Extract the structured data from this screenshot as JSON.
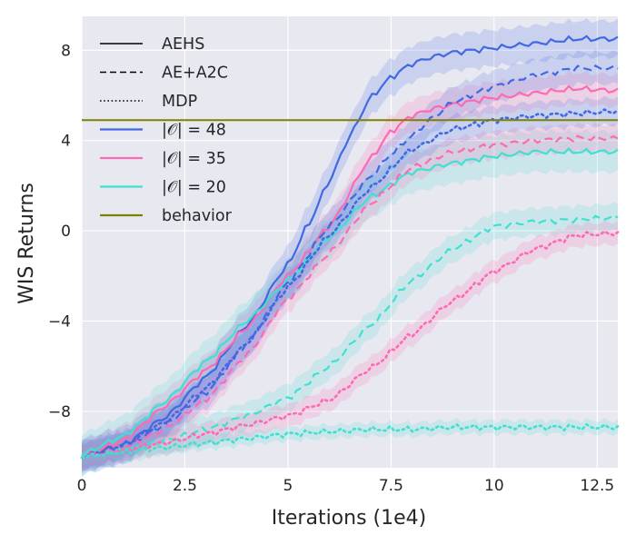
{
  "chart_data": {
    "type": "line",
    "title": "",
    "xlabel": "Iterations (1e4)",
    "ylabel": "WIS Returns",
    "xlim": [
      0,
      13
    ],
    "ylim": [
      -10.5,
      9.5
    ],
    "xticks": [
      0,
      2.5,
      5,
      7.5,
      10,
      12.5
    ],
    "xtick_labels": [
      "0",
      "2.5",
      "5",
      "7.5",
      "10",
      "12.5"
    ],
    "yticks": [
      -8,
      -4,
      0,
      4,
      8
    ],
    "ytick_labels": [
      "−8",
      "−4",
      "0",
      "4",
      "8"
    ],
    "grid": true,
    "background": "#e8e8f1",
    "legend_position": "top-left",
    "legend": [
      {
        "label": "AEHS",
        "kind": "linestyle",
        "dash": "solid",
        "color": "#000000"
      },
      {
        "label": "AE+A2C",
        "kind": "linestyle",
        "dash": "dashed",
        "color": "#000000"
      },
      {
        "label": "MDP",
        "kind": "linestyle",
        "dash": "dotted",
        "color": "#000000"
      },
      {
        "label": "|𝒪| = 48",
        "kind": "color",
        "color": "#4169e1"
      },
      {
        "label": "|𝒪| = 35",
        "kind": "color",
        "color": "#ff69b4"
      },
      {
        "label": "|𝒪| = 20",
        "kind": "color",
        "color": "#40e0d0"
      },
      {
        "label": "behavior",
        "kind": "color",
        "color": "#808000"
      }
    ],
    "behavior": {
      "name": "behavior",
      "value": 4.9,
      "color": "#808000"
    },
    "series": [
      {
        "name": "AEHS |O|=48",
        "color": "#4169e1",
        "dash": "solid",
        "band": 0.8,
        "x": [
          0,
          1,
          2,
          3,
          4,
          5,
          5.5,
          6,
          6.5,
          7,
          7.5,
          8,
          8.5,
          9,
          9.5,
          10,
          11,
          12,
          13
        ],
        "y": [
          -10,
          -9.5,
          -8.3,
          -6.5,
          -4.2,
          -1.5,
          0.3,
          2.2,
          4.2,
          5.9,
          6.8,
          7.4,
          7.7,
          7.9,
          8.0,
          8.1,
          8.3,
          8.5,
          8.5
        ]
      },
      {
        "name": "AEHS |O|=35",
        "color": "#ff69b4",
        "dash": "solid",
        "band": 0.7,
        "x": [
          0,
          1,
          2,
          3,
          4,
          5,
          6,
          7,
          7.5,
          8,
          8.5,
          9,
          10,
          11,
          12,
          13
        ],
        "y": [
          -10,
          -9.3,
          -7.8,
          -6.2,
          -4.3,
          -2.0,
          0.2,
          3.2,
          4.4,
          5.1,
          5.4,
          5.6,
          5.9,
          6.1,
          6.3,
          6.2
        ]
      },
      {
        "name": "AEHS |O|=20",
        "color": "#40e0d0",
        "dash": "solid",
        "band": 0.9,
        "x": [
          0,
          1,
          2,
          3,
          4,
          5,
          6,
          7,
          8,
          9,
          10,
          11,
          12,
          13
        ],
        "y": [
          -9.9,
          -9.1,
          -7.6,
          -5.8,
          -4.0,
          -2.2,
          -0.3,
          1.5,
          2.6,
          3.0,
          3.3,
          3.5,
          3.5,
          3.5
        ]
      },
      {
        "name": "AE+A2C |O|=48",
        "color": "#4169e1",
        "dash": "dashed",
        "band": 0.7,
        "x": [
          0,
          1,
          2,
          3,
          4,
          5,
          6,
          7,
          7.5,
          8,
          8.5,
          9,
          10,
          11,
          12,
          13
        ],
        "y": [
          -10,
          -9.6,
          -8.6,
          -7.2,
          -5.0,
          -2.3,
          0.2,
          2.4,
          3.4,
          4.2,
          5.0,
          5.7,
          6.4,
          6.9,
          7.2,
          7.2
        ]
      },
      {
        "name": "AE+A2C |O|=35",
        "color": "#ff69b4",
        "dash": "dashed",
        "band": 0.6,
        "x": [
          0,
          1,
          2,
          3,
          4,
          5,
          6,
          7,
          8,
          9,
          10,
          11,
          12,
          13
        ],
        "y": [
          -10,
          -9.6,
          -8.8,
          -7.5,
          -5.5,
          -3.0,
          -1.0,
          1.2,
          2.8,
          3.5,
          3.8,
          4.0,
          4.1,
          4.1
        ]
      },
      {
        "name": "AE+A2C |O|=20",
        "color": "#40e0d0",
        "dash": "dashed",
        "band": 0.6,
        "x": [
          0,
          1,
          2,
          3,
          4,
          5,
          6,
          7,
          8,
          9,
          10,
          11,
          12,
          13
        ],
        "y": [
          -10,
          -9.7,
          -9.3,
          -8.8,
          -8.2,
          -7.4,
          -6.0,
          -4.2,
          -2.2,
          -0.8,
          0.2,
          0.4,
          0.5,
          0.6
        ]
      },
      {
        "name": "MDP |O|=48",
        "color": "#4169e1",
        "dash": "dotted",
        "band": 0.6,
        "x": [
          0,
          1,
          2,
          3,
          4,
          5,
          6,
          7,
          8,
          9,
          10,
          11,
          12,
          13
        ],
        "y": [
          -10,
          -9.5,
          -8.5,
          -7.0,
          -5.0,
          -2.5,
          -0.2,
          1.9,
          3.6,
          4.5,
          4.9,
          5.1,
          5.2,
          5.3
        ]
      },
      {
        "name": "MDP |O|=35",
        "color": "#ff69b4",
        "dash": "dotted",
        "band": 0.5,
        "x": [
          0,
          1,
          2,
          3,
          4,
          5,
          6,
          7,
          8,
          9,
          10,
          11,
          12,
          13
        ],
        "y": [
          -10,
          -9.7,
          -9.4,
          -9.0,
          -8.6,
          -8.2,
          -7.5,
          -6.1,
          -4.6,
          -3.1,
          -1.8,
          -0.8,
          -0.2,
          -0.1
        ]
      },
      {
        "name": "MDP |O|=20",
        "color": "#40e0d0",
        "dash": "dotted",
        "band": 0.3,
        "x": [
          0,
          1,
          2,
          3,
          4,
          5,
          6,
          7,
          8,
          9,
          10,
          11,
          12,
          13
        ],
        "y": [
          -10,
          -9.8,
          -9.6,
          -9.4,
          -9.2,
          -9.0,
          -8.9,
          -8.8,
          -8.8,
          -8.7,
          -8.7,
          -8.7,
          -8.7,
          -8.7
        ]
      }
    ]
  }
}
